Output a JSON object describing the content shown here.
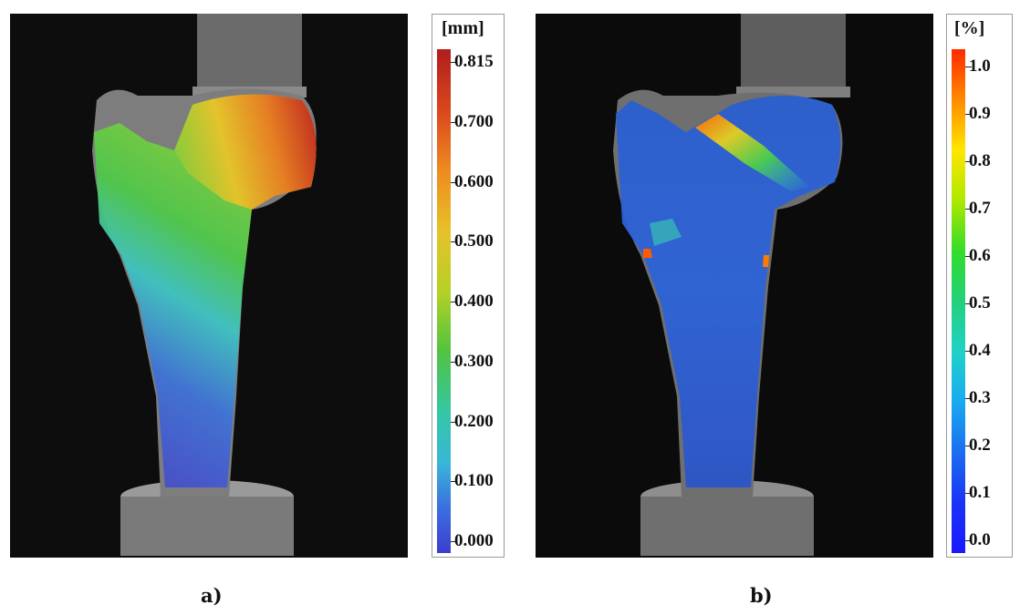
{
  "figure": {
    "panel_a": {
      "caption": "a)",
      "legend_unit": "[mm]",
      "legend_ticks": [
        "0.815",
        "0.700",
        "0.600",
        "0.500",
        "0.400",
        "0.300",
        "0.200",
        "0.100",
        "0.000"
      ],
      "colors": {
        "top": "#b01d1d",
        "bottom": "#3c3ecf"
      }
    },
    "panel_b": {
      "caption": "b)",
      "legend_unit": "[%]",
      "legend_ticks": [
        "1.0",
        "0.9",
        "0.8",
        "0.7",
        "0.6",
        "0.5",
        "0.4",
        "0.3",
        "0.2",
        "0.1",
        "0.0"
      ],
      "colors": {
        "top": "#ff2a00",
        "bottom": "#1a1aff"
      }
    }
  }
}
